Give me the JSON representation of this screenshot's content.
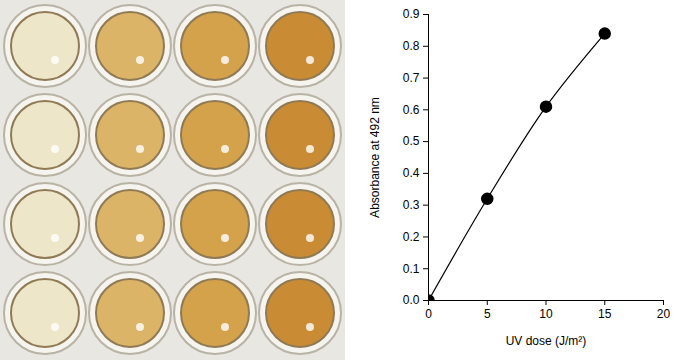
{
  "chart_data": {
    "type": "line",
    "color": "#000000",
    "marker": "circle",
    "x": [
      0,
      5,
      10,
      15
    ],
    "values": [
      0.0,
      0.32,
      0.61,
      0.84
    ],
    "x_label": "UV dose (J/m²)",
    "y_label": "Absorbance at 492 nm",
    "xlim": [
      0,
      20
    ],
    "xticks": [
      0,
      5,
      10,
      15,
      20
    ],
    "ylim": [
      0,
      0.9
    ],
    "yticks": [
      {
        "value": 0,
        "label": "0.0"
      },
      0.1,
      0.2,
      0.3,
      0.4,
      0.5,
      0.6,
      0.7,
      0.8,
      0.9
    ],
    "grid": false
  }
}
